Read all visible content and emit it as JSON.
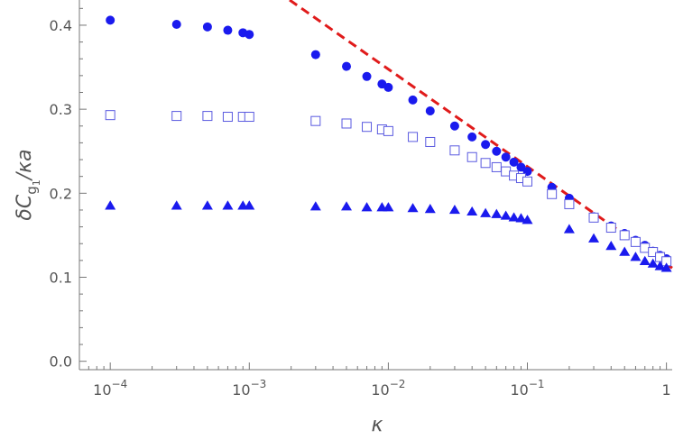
{
  "chart_data": {
    "type": "scatter",
    "title": "",
    "xlabel": "κ",
    "ylabel_parts": {
      "base": "δC",
      "sub": "g",
      "subsub": "1",
      "tail": "/κa"
    },
    "xscale": "log",
    "xlim": [
      6e-05,
      1.1
    ],
    "ylim": [
      -0.01,
      0.43
    ],
    "grid": false,
    "legend": "none",
    "x_ticks": [
      {
        "value": 0.0001,
        "mantissa": "10",
        "exp": "−4"
      },
      {
        "value": 0.001,
        "mantissa": "10",
        "exp": "−3"
      },
      {
        "value": 0.01,
        "mantissa": "10",
        "exp": "−2"
      },
      {
        "value": 0.1,
        "mantissa": "10",
        "exp": "−1"
      },
      {
        "value": 1,
        "mantissa": "1",
        "exp": ""
      }
    ],
    "y_ticks": [
      {
        "value": 0.0,
        "label": "0.0"
      },
      {
        "value": 0.1,
        "label": "0.1"
      },
      {
        "value": 0.2,
        "label": "0.2"
      },
      {
        "value": 0.3,
        "label": "0.3"
      },
      {
        "value": 0.4,
        "label": "0.4"
      }
    ],
    "series": [
      {
        "marker": "filled-circle",
        "color": "#1a1aee",
        "x": [
          0.0001,
          0.0003,
          0.0005,
          0.0007,
          0.0009,
          0.001,
          0.003,
          0.005,
          0.007,
          0.009,
          0.01,
          0.015,
          0.02,
          0.03,
          0.04,
          0.05,
          0.06,
          0.07,
          0.08,
          0.09,
          0.1,
          0.15,
          0.2,
          0.3,
          0.4,
          0.5,
          0.6,
          0.7,
          0.8,
          0.9,
          1.0
        ],
        "y": [
          0.406,
          0.401,
          0.398,
          0.394,
          0.391,
          0.389,
          0.365,
          0.351,
          0.339,
          0.33,
          0.326,
          0.311,
          0.298,
          0.28,
          0.267,
          0.258,
          0.25,
          0.243,
          0.237,
          0.231,
          0.226,
          0.207,
          0.194,
          0.172,
          0.161,
          0.152,
          0.144,
          0.138,
          0.131,
          0.126,
          0.122
        ]
      },
      {
        "marker": "open-square",
        "color": "#5a5ae0",
        "x": [
          0.0001,
          0.0003,
          0.0005,
          0.0007,
          0.0009,
          0.001,
          0.003,
          0.005,
          0.007,
          0.009,
          0.01,
          0.015,
          0.02,
          0.03,
          0.04,
          0.05,
          0.06,
          0.07,
          0.08,
          0.09,
          0.1,
          0.15,
          0.2,
          0.3,
          0.4,
          0.5,
          0.6,
          0.7,
          0.8,
          0.9,
          1.0
        ],
        "y": [
          0.293,
          0.292,
          0.292,
          0.291,
          0.291,
          0.291,
          0.286,
          0.283,
          0.279,
          0.276,
          0.274,
          0.267,
          0.261,
          0.251,
          0.243,
          0.236,
          0.231,
          0.226,
          0.221,
          0.218,
          0.214,
          0.199,
          0.187,
          0.171,
          0.159,
          0.15,
          0.142,
          0.135,
          0.13,
          0.124,
          0.119
        ]
      },
      {
        "marker": "filled-triangle",
        "color": "#1a1aee",
        "x": [
          0.0001,
          0.0003,
          0.0005,
          0.0007,
          0.0009,
          0.001,
          0.003,
          0.005,
          0.007,
          0.009,
          0.01,
          0.015,
          0.02,
          0.03,
          0.04,
          0.05,
          0.06,
          0.07,
          0.08,
          0.09,
          0.1,
          0.2,
          0.3,
          0.4,
          0.5,
          0.6,
          0.7,
          0.8,
          0.9,
          1.0
        ],
        "y": [
          0.185,
          0.185,
          0.185,
          0.185,
          0.185,
          0.185,
          0.184,
          0.184,
          0.183,
          0.183,
          0.183,
          0.182,
          0.181,
          0.18,
          0.178,
          0.176,
          0.175,
          0.173,
          0.171,
          0.17,
          0.168,
          0.157,
          0.146,
          0.137,
          0.13,
          0.124,
          0.119,
          0.116,
          0.113,
          0.111
        ]
      }
    ],
    "reference_line": {
      "style": "dashed",
      "color": "#e01b1b",
      "x": [
        0.00195,
        1.1
      ],
      "y": [
        0.43,
        0.111
      ]
    }
  }
}
